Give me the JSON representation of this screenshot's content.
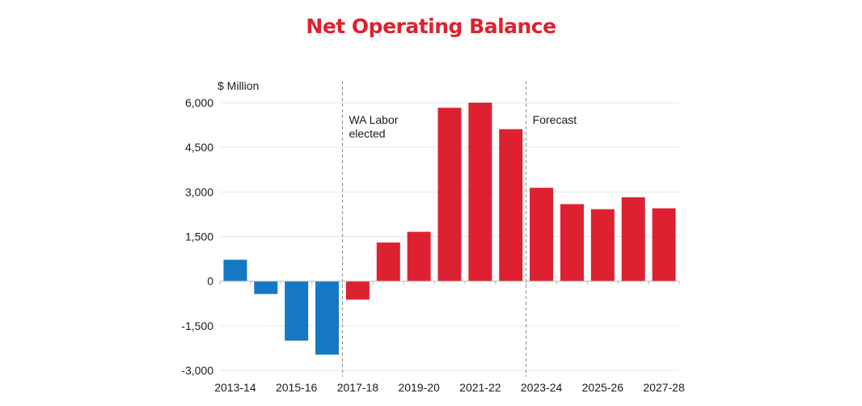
{
  "chart_data": {
    "type": "bar",
    "title": "Net Operating Balance",
    "ylabel": "$ Million",
    "xlabel": "",
    "categories": [
      "2013-14",
      "2014-15",
      "2015-16",
      "2016-17",
      "2017-18",
      "2018-19",
      "2019-20",
      "2020-21",
      "2021-22",
      "2022-23",
      "2023-24",
      "2024-25",
      "2025-26",
      "2026-27",
      "2027-28"
    ],
    "values": [
      720,
      -430,
      -2000,
      -2470,
      -620,
      1300,
      1660,
      5830,
      6000,
      5110,
      3140,
      2590,
      2420,
      2820,
      2450
    ],
    "bar_colors": [
      "#1479c2",
      "#1479c2",
      "#1479c2",
      "#1479c2",
      "#dd2130",
      "#dd2130",
      "#dd2130",
      "#dd2130",
      "#dd2130",
      "#dd2130",
      "#dd2130",
      "#dd2130",
      "#dd2130",
      "#dd2130",
      "#dd2130"
    ],
    "ylim": [
      -3000,
      6000
    ],
    "yticks": [
      -3000,
      -1500,
      0,
      1500,
      3000,
      4500,
      6000
    ],
    "ytick_labels": [
      "-3,000",
      "-1,500",
      "0",
      "1,500",
      "3,000",
      "4,500",
      "6,000"
    ],
    "xtick_labels": [
      "2013-14",
      "2015-16",
      "2017-18",
      "2019-20",
      "2021-22",
      "2023-24",
      "2025-26",
      "2027-28"
    ],
    "grid": true,
    "annotations": [
      {
        "lines": [
          "WA Labor",
          "elected"
        ],
        "between": [
          "2016-17",
          "2017-18"
        ]
      },
      {
        "lines": [
          "Forecast"
        ],
        "between": [
          "2022-23",
          "2023-24"
        ]
      }
    ]
  }
}
